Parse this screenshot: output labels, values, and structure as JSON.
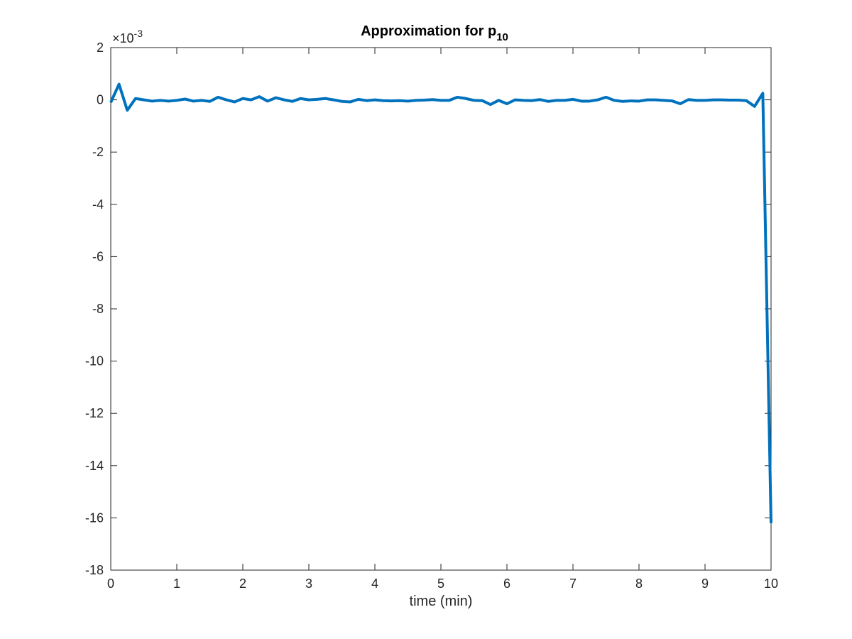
{
  "chart_data": {
    "type": "line",
    "title": {
      "main": "Approximation for p",
      "subscript": "10"
    },
    "xlabel": "time (min)",
    "ylabel": "",
    "xlim": [
      0,
      10
    ],
    "ylim": [
      -18,
      2
    ],
    "y_multiplier": {
      "prefix": "×10",
      "exponent": "-3"
    },
    "x_ticks": [
      0,
      1,
      2,
      3,
      4,
      5,
      6,
      7,
      8,
      9,
      10
    ],
    "y_ticks": [
      2,
      0,
      -2,
      -4,
      -6,
      -8,
      -10,
      -12,
      -14,
      -16,
      -18
    ],
    "grid": false,
    "series": [
      {
        "color": "#0072BD",
        "x": [
          0,
          0.125,
          0.25,
          0.375,
          0.5,
          0.625,
          0.75,
          0.875,
          1.0,
          1.125,
          1.25,
          1.375,
          1.5,
          1.625,
          1.75,
          1.875,
          2.0,
          2.125,
          2.25,
          2.375,
          2.5,
          2.625,
          2.75,
          2.875,
          3.0,
          3.125,
          3.25,
          3.375,
          3.5,
          3.625,
          3.75,
          3.875,
          4.0,
          4.125,
          4.25,
          4.375,
          4.5,
          4.625,
          4.75,
          4.875,
          5.0,
          5.125,
          5.25,
          5.375,
          5.5,
          5.625,
          5.75,
          5.875,
          6.0,
          6.125,
          6.25,
          6.375,
          6.5,
          6.625,
          6.75,
          6.875,
          7.0,
          7.125,
          7.25,
          7.375,
          7.5,
          7.625,
          7.75,
          7.875,
          8.0,
          8.125,
          8.25,
          8.375,
          8.5,
          8.625,
          8.75,
          8.875,
          9.0,
          9.125,
          9.25,
          9.375,
          9.5,
          9.625,
          9.75,
          9.875,
          10.0
        ],
        "y": [
          -0.1,
          0.6,
          -0.4,
          0.05,
          0.0,
          -0.05,
          -0.02,
          -0.05,
          -0.02,
          0.03,
          -0.05,
          -0.02,
          -0.06,
          0.1,
          0.0,
          -0.08,
          0.05,
          0.0,
          0.12,
          -0.05,
          0.08,
          0.0,
          -0.06,
          0.05,
          0.0,
          0.02,
          0.05,
          0.0,
          -0.06,
          -0.08,
          0.02,
          -0.03,
          0.0,
          -0.03,
          -0.04,
          -0.03,
          -0.05,
          -0.02,
          -0.01,
          0.01,
          -0.02,
          -0.02,
          0.1,
          0.05,
          -0.02,
          -0.03,
          -0.18,
          -0.02,
          -0.15,
          0.0,
          -0.02,
          -0.03,
          0.01,
          -0.06,
          -0.02,
          -0.02,
          0.02,
          -0.05,
          -0.05,
          0.0,
          0.1,
          -0.02,
          -0.06,
          -0.04,
          -0.05,
          0.0,
          0.0,
          -0.02,
          -0.04,
          -0.15,
          0.01,
          -0.02,
          -0.02,
          0.0,
          0.0,
          -0.01,
          -0.01,
          -0.03,
          -0.25,
          0.25,
          -16.2
        ]
      }
    ]
  }
}
